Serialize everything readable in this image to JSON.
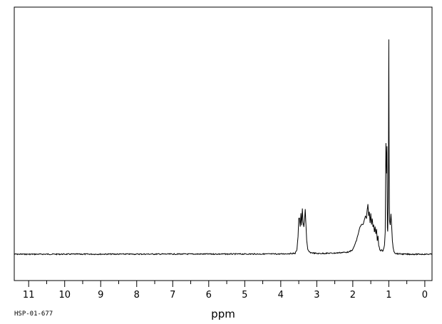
{
  "sample_id": "HSP-01-677",
  "chart_data": {
    "type": "line",
    "title": "",
    "xlabel": "ppm",
    "ylabel": "",
    "xlim": [
      11.4,
      -0.2
    ],
    "x_reversed": true,
    "ylim": [
      0,
      1.0
    ],
    "grid": false,
    "major_ticks": [
      11,
      10,
      9,
      8,
      7,
      6,
      5,
      4,
      3,
      2,
      1,
      0
    ],
    "tick_labels": [
      "11",
      "10",
      "9",
      "8",
      "7",
      "6",
      "5",
      "4",
      "3",
      "2",
      "1",
      "0"
    ],
    "minor_tick_step": 0.5,
    "series": [
      {
        "x": [
          11.4,
          4.0,
          3.6,
          3.55,
          3.52,
          3.5,
          3.48,
          3.46,
          3.44,
          3.42,
          3.4,
          3.38,
          3.36,
          3.34,
          3.32,
          3.3,
          3.28,
          3.25,
          3.2,
          3.0,
          2.5,
          2.1,
          2.0,
          1.95,
          1.9,
          1.85,
          1.8,
          1.76,
          1.72,
          1.68,
          1.65,
          1.62,
          1.6,
          1.58,
          1.56,
          1.54,
          1.52,
          1.5,
          1.48,
          1.46,
          1.44,
          1.42,
          1.4,
          1.38,
          1.36,
          1.34,
          1.32,
          1.3,
          1.28,
          1.25,
          1.22,
          1.2,
          1.17,
          1.15,
          1.12,
          1.1,
          1.08,
          1.06,
          1.05,
          1.04,
          1.03,
          1.02,
          1.01,
          1.0,
          0.99,
          0.98,
          0.96,
          0.94,
          0.92,
          0.9,
          0.88,
          0.86,
          0.83,
          0.8,
          0.7,
          0.5,
          -0.2
        ],
        "y": [
          0.0,
          0.001,
          0.004,
          0.02,
          0.08,
          0.16,
          0.16,
          0.12,
          0.18,
          0.13,
          0.2,
          0.14,
          0.12,
          0.15,
          0.2,
          0.13,
          0.06,
          0.02,
          0.008,
          0.003,
          0.005,
          0.01,
          0.02,
          0.04,
          0.06,
          0.09,
          0.12,
          0.13,
          0.13,
          0.15,
          0.17,
          0.16,
          0.2,
          0.22,
          0.17,
          0.19,
          0.14,
          0.18,
          0.13,
          0.16,
          0.12,
          0.13,
          0.1,
          0.12,
          0.09,
          0.11,
          0.06,
          0.08,
          0.04,
          0.02,
          0.015,
          0.02,
          0.012,
          0.02,
          0.04,
          0.1,
          0.49,
          0.36,
          0.48,
          0.12,
          0.1,
          0.2,
          0.33,
          0.95,
          0.4,
          0.15,
          0.13,
          0.18,
          0.12,
          0.06,
          0.03,
          0.015,
          0.006,
          0.003,
          0.0015,
          0.0,
          0.0
        ]
      }
    ]
  }
}
